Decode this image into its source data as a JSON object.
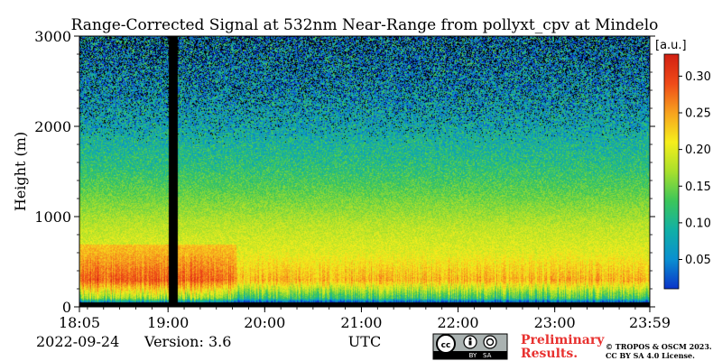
{
  "chart_data": {
    "type": "heatmap",
    "title": "Range-Corrected Signal at 532nm Near-Range from pollyxt_cpv at Mindelo",
    "ylabel": "Height (m)",
    "xlabel": "UTC",
    "x_tick_labels": [
      "18:05",
      "19:00",
      "20:00",
      "21:00",
      "22:00",
      "23:00",
      "23:59"
    ],
    "x_range_hours": [
      18.0833,
      23.9833
    ],
    "y_ticks": [
      0,
      1000,
      2000,
      3000
    ],
    "y_range": [
      0,
      3000
    ],
    "colorbar": {
      "unit": "[a.u.]",
      "ticks": [
        0.05,
        0.1,
        0.15,
        0.2,
        0.25,
        0.3
      ],
      "tick_labels": [
        "0.05",
        "0.10",
        "0.15",
        "0.20",
        "0.25",
        "0.30"
      ],
      "range": [
        0.01,
        0.33
      ],
      "colormap": [
        "#0b34c9",
        "#0a8fd0",
        "#11b0a6",
        "#3cc65a",
        "#a8e02c",
        "#f6ee1c",
        "#f7a21e",
        "#ef4a18",
        "#d11f12"
      ]
    },
    "gaps_hours": [
      [
        19.0,
        19.1
      ]
    ],
    "profile_by_height": [
      {
        "height": 50,
        "signal": 0.0
      },
      {
        "height": 100,
        "signal": 0.12
      },
      {
        "height": 300,
        "signal": 0.24
      },
      {
        "height": 600,
        "signal": 0.2
      },
      {
        "height": 900,
        "signal": 0.18
      },
      {
        "height": 1200,
        "signal": 0.15
      },
      {
        "height": 1600,
        "signal": 0.11
      },
      {
        "height": 2000,
        "signal": 0.08
      },
      {
        "height": 2500,
        "signal": 0.06
      },
      {
        "height": 3000,
        "signal": 0.05
      }
    ],
    "grid": false
  },
  "footer": {
    "date": "2022-09-24",
    "version": "Version: 3.6",
    "utc_label": "UTC",
    "preliminary_line1": "Preliminary",
    "preliminary_line2": "Results.",
    "copyright_line1": "© TROPOS & OSCM 2023.",
    "copyright_line2": "CC BY SA 4.0 License.",
    "cc_badge_text": "BY   SA"
  }
}
